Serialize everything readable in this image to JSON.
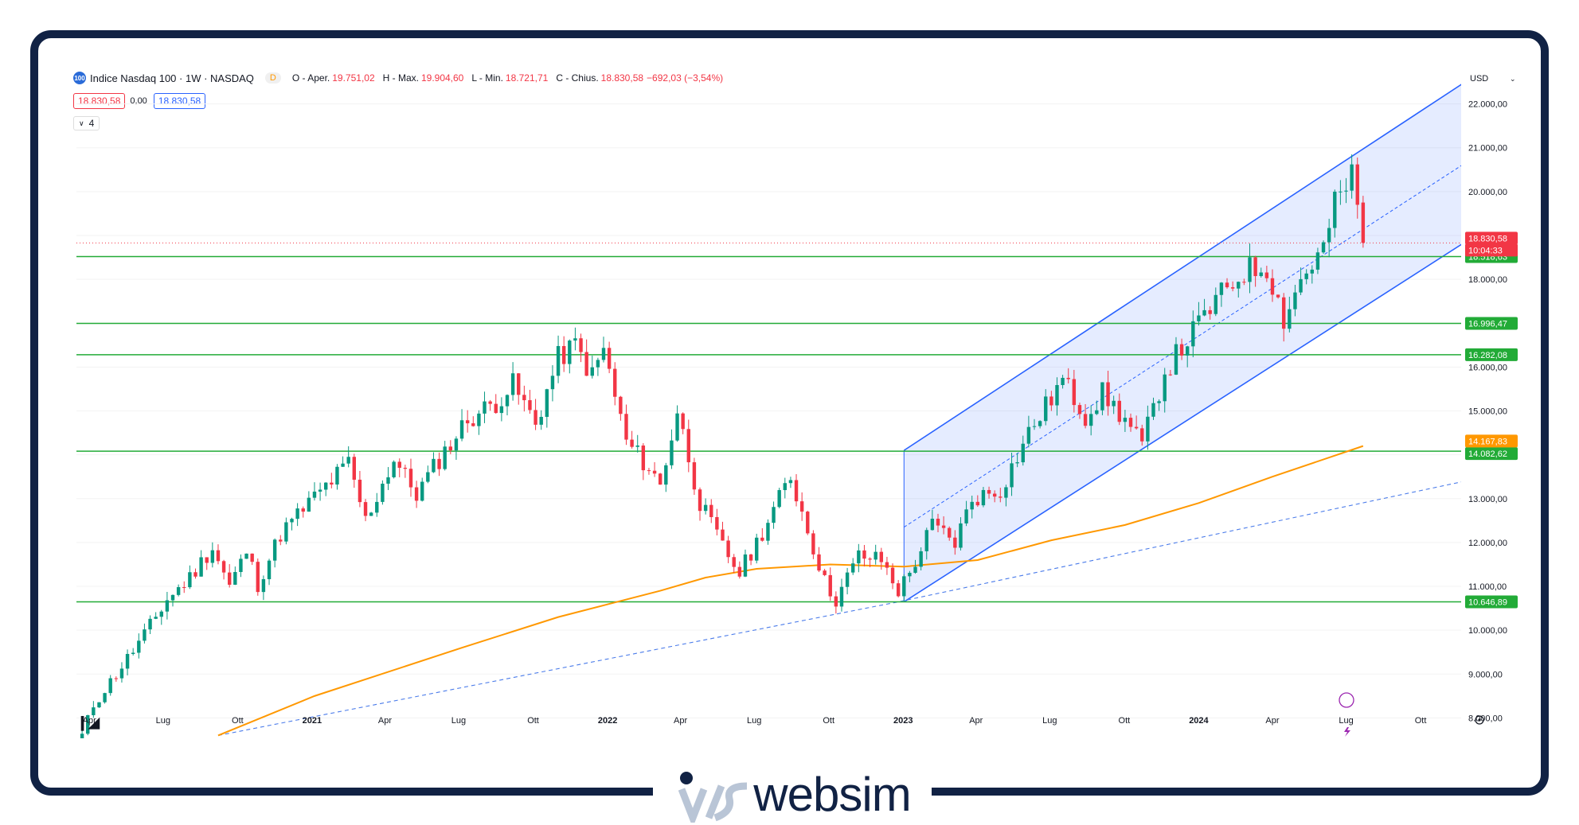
{
  "header": {
    "symbol_badge": "100",
    "title": "Indice Nasdaq 100 · 1W · NASDAQ",
    "interval_badge": "D",
    "ohlc": [
      {
        "key": "O - Aper.",
        "value": "19.751,02"
      },
      {
        "key": "H - Max.",
        "value": "19.904,60"
      },
      {
        "key": "L - Min.",
        "value": "18.721,71"
      },
      {
        "key": "C - Chius.",
        "value": "18.830,58"
      }
    ],
    "change": "−692,03 (−3,54%)",
    "bid": "18.830,58",
    "spread": "0,00",
    "ask": "18.830,58",
    "indicator_count": "4"
  },
  "currency": "USD",
  "brand": "websim",
  "colors": {
    "up": "#089981",
    "down": "#f23645",
    "support": "#22ab37",
    "channel": "#2962ff",
    "ma": "#ff9800",
    "frame": "#112244"
  },
  "icons": [
    "tradingview-logo-icon",
    "settings-icon",
    "flash-icon",
    "chevron-down-icon"
  ],
  "chart_data": {
    "type": "candlestick",
    "timeframe": "1W",
    "ylim": [
      7500,
      22700
    ],
    "xlim": [
      "2020-03-16",
      "2024-11-25"
    ],
    "y_ticks": [
      8000,
      9000,
      10000,
      11000,
      12000,
      13000,
      14000,
      15000,
      16000,
      17000,
      18000,
      19000,
      20000,
      21000,
      22000
    ],
    "y_tick_labels": [
      "8.000,00",
      "9.000,00",
      "10.000,00",
      "11.000,00",
      "12.000,00",
      "13.000,00",
      "14.000,00",
      "15.000,00",
      "16.000,00",
      "17.000,00",
      "18.000,00",
      "19.000,00",
      "20.000,00",
      "21.000,00",
      "22.000,00"
    ],
    "x_ticks": [
      {
        "label": "Apr",
        "date": "2020-04-01",
        "bold": false
      },
      {
        "label": "Lug",
        "date": "2020-07-01",
        "bold": false
      },
      {
        "label": "Ott",
        "date": "2020-10-01",
        "bold": false
      },
      {
        "label": "2021",
        "date": "2021-01-01",
        "bold": true
      },
      {
        "label": "Apr",
        "date": "2021-04-01",
        "bold": false
      },
      {
        "label": "Lug",
        "date": "2021-07-01",
        "bold": false
      },
      {
        "label": "Ott",
        "date": "2021-10-01",
        "bold": false
      },
      {
        "label": "2022",
        "date": "2022-01-01",
        "bold": true
      },
      {
        "label": "Apr",
        "date": "2022-04-01",
        "bold": false
      },
      {
        "label": "Lug",
        "date": "2022-07-01",
        "bold": false
      },
      {
        "label": "Ott",
        "date": "2022-10-01",
        "bold": false
      },
      {
        "label": "2023",
        "date": "2023-01-01",
        "bold": true
      },
      {
        "label": "Apr",
        "date": "2023-04-01",
        "bold": false
      },
      {
        "label": "Lug",
        "date": "2023-07-01",
        "bold": false
      },
      {
        "label": "Ott",
        "date": "2023-10-01",
        "bold": false
      },
      {
        "label": "2024",
        "date": "2024-01-01",
        "bold": true
      },
      {
        "label": "Apr",
        "date": "2024-04-01",
        "bold": false
      },
      {
        "label": "Lug",
        "date": "2024-07-01",
        "bold": false
      },
      {
        "label": "Ott",
        "date": "2024-10-01",
        "bold": false
      }
    ],
    "close_path": [
      [
        "2020-03-23",
        7600
      ],
      [
        "2020-04-06",
        8300
      ],
      [
        "2020-05-04",
        9000
      ],
      [
        "2020-06-08",
        9900
      ],
      [
        "2020-07-06",
        10700
      ],
      [
        "2020-08-03",
        11200
      ],
      [
        "2020-08-31",
        11900
      ],
      [
        "2020-09-21",
        11000
      ],
      [
        "2020-10-12",
        11800
      ],
      [
        "2020-10-26",
        11050
      ],
      [
        "2020-11-23",
        12200
      ],
      [
        "2020-12-28",
        12900
      ],
      [
        "2021-02-15",
        13800
      ],
      [
        "2021-03-08",
        12500
      ],
      [
        "2021-04-12",
        13900
      ],
      [
        "2021-05-10",
        13100
      ],
      [
        "2021-06-07",
        13900
      ],
      [
        "2021-07-12",
        14800
      ],
      [
        "2021-08-16",
        15200
      ],
      [
        "2021-09-06",
        15600
      ],
      [
        "2021-10-04",
        14700
      ],
      [
        "2021-11-01",
        16200
      ],
      [
        "2021-11-22",
        16500
      ],
      [
        "2021-12-13",
        15800
      ],
      [
        "2021-12-27",
        16400
      ],
      [
        "2022-01-24",
        14300
      ],
      [
        "2022-02-21",
        13700
      ],
      [
        "2022-03-07",
        13300
      ],
      [
        "2022-03-28",
        15000
      ],
      [
        "2022-04-25",
        12900
      ],
      [
        "2022-05-23",
        11900
      ],
      [
        "2022-06-13",
        11300
      ],
      [
        "2022-07-04",
        12000
      ],
      [
        "2022-08-15",
        13500
      ],
      [
        "2022-09-05",
        12300
      ],
      [
        "2022-09-26",
        11100
      ],
      [
        "2022-10-10",
        10700
      ],
      [
        "2022-11-07",
        11700
      ],
      [
        "2022-12-05",
        11600
      ],
      [
        "2022-12-26",
        10900
      ],
      [
        "2023-01-09",
        11300
      ],
      [
        "2023-02-06",
        12400
      ],
      [
        "2023-03-06",
        12000
      ],
      [
        "2023-03-27",
        13000
      ],
      [
        "2023-05-01",
        13200
      ],
      [
        "2023-06-05",
        14500
      ],
      [
        "2023-07-17",
        15700
      ],
      [
        "2023-08-14",
        14900
      ],
      [
        "2023-09-04",
        15400
      ],
      [
        "2023-10-02",
        14800
      ],
      [
        "2023-10-23",
        14200
      ],
      [
        "2023-11-20",
        15900
      ],
      [
        "2023-12-25",
        16800
      ],
      [
        "2024-01-22",
        17500
      ],
      [
        "2024-02-26",
        18200
      ],
      [
        "2024-03-25",
        18300
      ],
      [
        "2024-04-15",
        17100
      ],
      [
        "2024-05-06",
        18000
      ],
      [
        "2024-06-03",
        18700
      ],
      [
        "2024-06-17",
        19700
      ],
      [
        "2024-07-01",
        20100
      ],
      [
        "2024-07-08",
        20400
      ],
      [
        "2024-07-22",
        18830
      ]
    ],
    "last_candle": {
      "date": "2024-07-22",
      "open": 19751.02,
      "high": 19904.6,
      "low": 18721.71,
      "close": 18830.58
    },
    "support_levels": [
      {
        "value": 18518.63,
        "label": "18.518,63"
      },
      {
        "value": 16996.47,
        "label": "16.996,47"
      },
      {
        "value": 16282.08,
        "label": "16.282,08"
      },
      {
        "value": 14082.62,
        "label": "14.082,62"
      },
      {
        "value": 10646.89,
        "label": "10.646,89"
      }
    ],
    "moving_average": {
      "last_label": "14.167,83",
      "points": [
        [
          "2020-09-07",
          7600
        ],
        [
          "2021-01-04",
          8500
        ],
        [
          "2021-07-05",
          9600
        ],
        [
          "2021-11-01",
          10300
        ],
        [
          "2022-03-07",
          10900
        ],
        [
          "2022-05-02",
          11200
        ],
        [
          "2022-07-04",
          11400
        ],
        [
          "2022-10-03",
          11500
        ],
        [
          "2023-01-02",
          11450
        ],
        [
          "2023-04-03",
          11600
        ],
        [
          "2023-07-03",
          12050
        ],
        [
          "2023-10-02",
          12400
        ],
        [
          "2024-01-01",
          12900
        ],
        [
          "2024-04-01",
          13500
        ],
        [
          "2024-07-22",
          14200
        ]
      ]
    },
    "trendline": {
      "points": [
        [
          "2020-09-07",
          7600
        ],
        [
          "2022-12-26",
          10646.89
        ],
        [
          "2024-11-25",
          13400
        ]
      ]
    },
    "channel": {
      "upper": [
        [
          "2023-01-02",
          14100
        ],
        [
          "2024-11-25",
          22500
        ]
      ],
      "mid": [
        [
          "2023-01-02",
          12350
        ],
        [
          "2024-11-25",
          20650
        ]
      ],
      "lower": [
        [
          "2023-01-02",
          10646.89
        ],
        [
          "2024-11-25",
          18850
        ]
      ]
    },
    "price_labels": [
      {
        "value": 18830.58,
        "label": "18.830,58",
        "countdown": "10:04:33"
      }
    ]
  }
}
